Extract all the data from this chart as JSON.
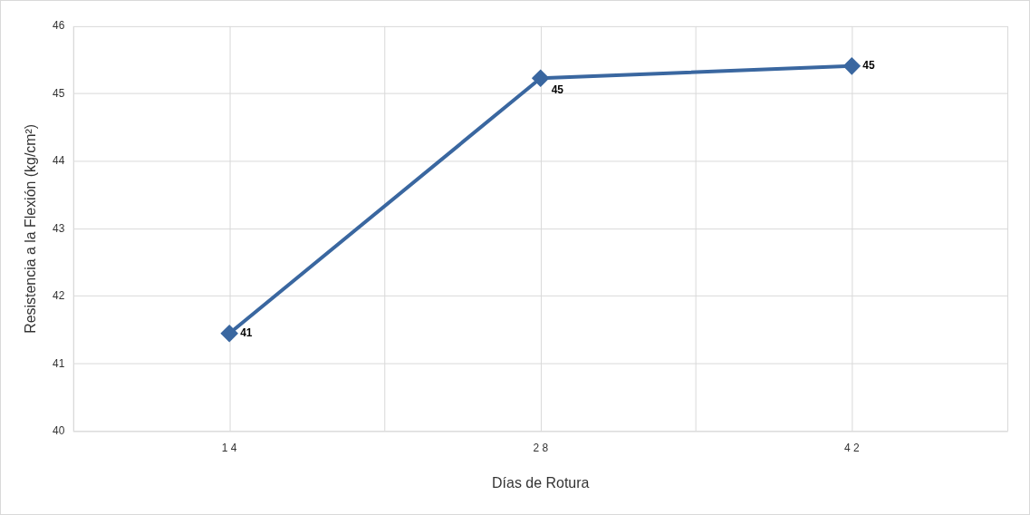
{
  "chart_data": {
    "type": "line",
    "xlabel": "Días de Rotura",
    "ylabel": "Resistencia a la Flexión (kg/cm²)",
    "categories": [
      "1 4",
      "2 8",
      "4 2"
    ],
    "series": [
      {
        "color": "#3a67a0",
        "values": [
          41.45,
          45.23,
          45.41
        ],
        "value_labels": [
          "41",
          "45",
          "45"
        ]
      }
    ],
    "ylim": [
      40,
      46
    ],
    "yticks": [
      40,
      41,
      42,
      43,
      44,
      45,
      46
    ],
    "grid": true,
    "legend": false,
    "marker": "diamond",
    "line_style": "solid"
  }
}
